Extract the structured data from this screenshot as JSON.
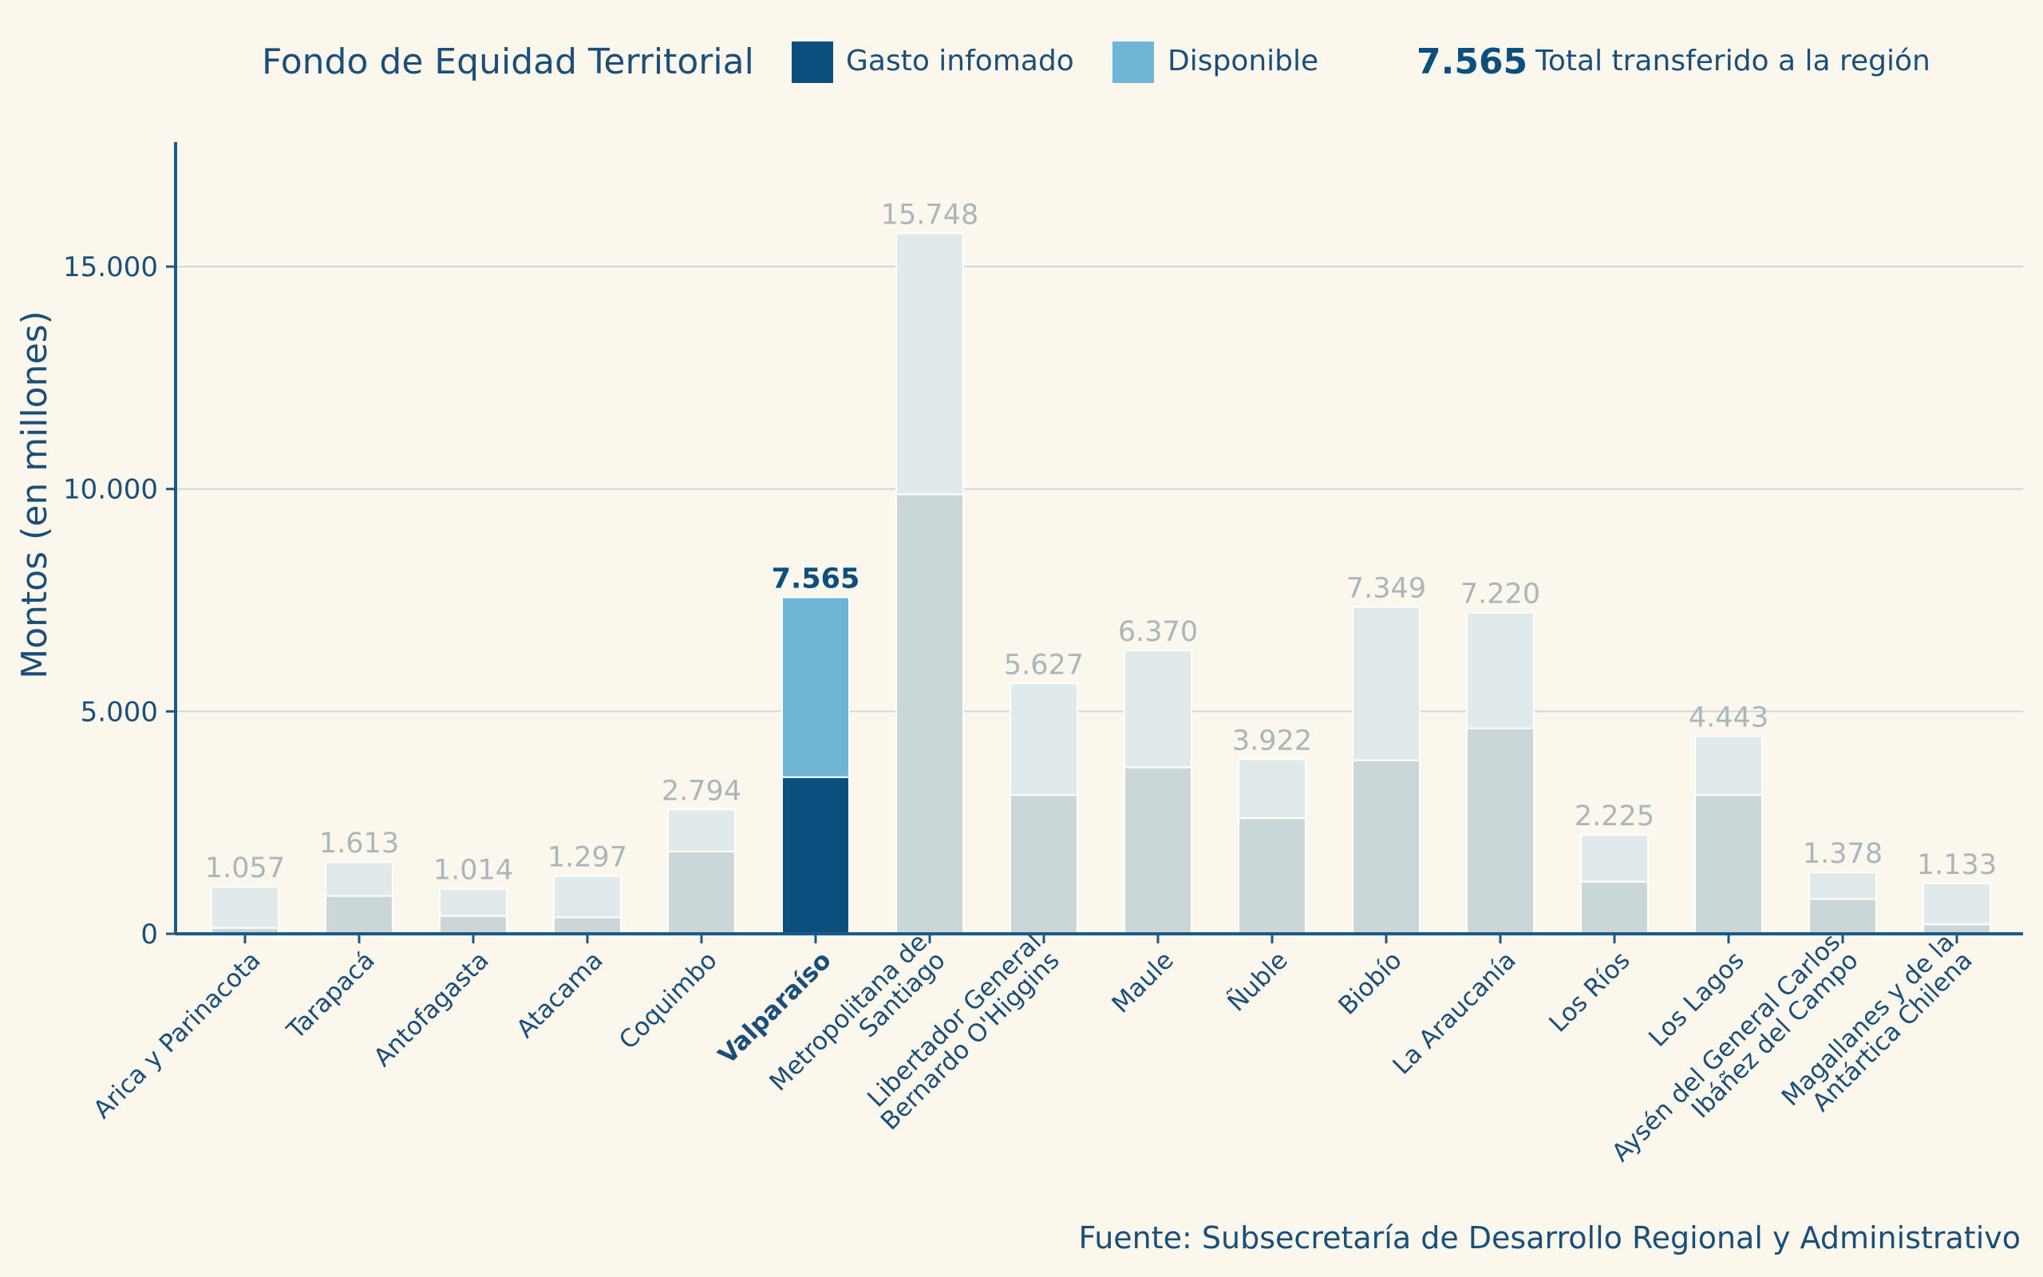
{
  "chart_data": {
    "type": "bar",
    "title": "Fondo de Equidad Territorial",
    "legend": {
      "spent_label": "Gasto infomado",
      "available_label": "Disponible",
      "total_value": "7.565",
      "total_label": "Total transferido a la región",
      "placement": "top"
    },
    "ylabel": "Montos (en millones)",
    "xlabel": "",
    "ylim": [
      0,
      17800
    ],
    "yticks": [
      0,
      5000,
      10000,
      15000
    ],
    "ytick_labels": [
      "0",
      "5.000",
      "10.000",
      "15.000"
    ],
    "grid": true,
    "highlight_index": 5,
    "categories": [
      "Arica y Parinacota",
      "Tarapacá",
      "Antofagasta",
      "Atacama",
      "Coquimbo",
      "Valparaíso",
      "Metropolitana de Santiago",
      "Libertador General Bernardo O'Higgins",
      "Maule",
      "Ñuble",
      "Biobío",
      "La Araucanía",
      "Los Ríos",
      "Los Lagos",
      "Aysén del General Carlos Ibáñez del Campo",
      "Magallanes y de la Antártica Chilena"
    ],
    "category_lines": [
      [
        "Arica y Parinacota"
      ],
      [
        "Tarapacá"
      ],
      [
        "Antofagasta"
      ],
      [
        "Atacama"
      ],
      [
        "Coquimbo"
      ],
      [
        "Valparaíso"
      ],
      [
        "Metropolitana de",
        "Santiago"
      ],
      [
        "Libertador General",
        "Bernardo O'Higgins"
      ],
      [
        "Maule"
      ],
      [
        "Ñuble"
      ],
      [
        "Biobío"
      ],
      [
        "La Araucanía"
      ],
      [
        "Los Ríos"
      ],
      [
        "Los Lagos"
      ],
      [
        "Aysén del General Carlos",
        "Ibáñez del Campo"
      ],
      [
        "Magallanes y de la",
        "Antártica Chilena"
      ]
    ],
    "series": [
      {
        "name": "Gasto infomado",
        "values": [
          130,
          850,
          400,
          370,
          1850,
          3520,
          9880,
          3120,
          3740,
          2600,
          3900,
          4620,
          1170,
          3120,
          780,
          210
        ]
      },
      {
        "name": "Disponible",
        "values": [
          927,
          763,
          614,
          927,
          944,
          4045,
          5868,
          2507,
          2630,
          1322,
          3449,
          2600,
          1055,
          1323,
          598,
          923
        ]
      }
    ],
    "totals": [
      1057,
      1613,
      1014,
      1297,
      2794,
      7565,
      15748,
      5627,
      6370,
      3922,
      7349,
      7220,
      2225,
      4443,
      1378,
      1133
    ],
    "total_labels": [
      "1.057",
      "1.613",
      "1.014",
      "1.297",
      "2.794",
      "7.565",
      "15.748",
      "5.627",
      "6.370",
      "3.922",
      "7.349",
      "7.220",
      "2.225",
      "4.443",
      "1.378",
      "1.133"
    ],
    "colors": {
      "highlight_spent": "#0a4f7e",
      "highlight_available": "#6fb5d6",
      "other_spent": "#cbd6d8",
      "other_available": "#e0eaea",
      "axis": "#1b5a86",
      "grid": "#c9d9e0",
      "text": "#1b4f7a",
      "value_label": "#a9b6bb",
      "background": "#fbf7ec"
    }
  },
  "source": "Fuente: Subsecretaría de Desarrollo Regional y Administrativo"
}
